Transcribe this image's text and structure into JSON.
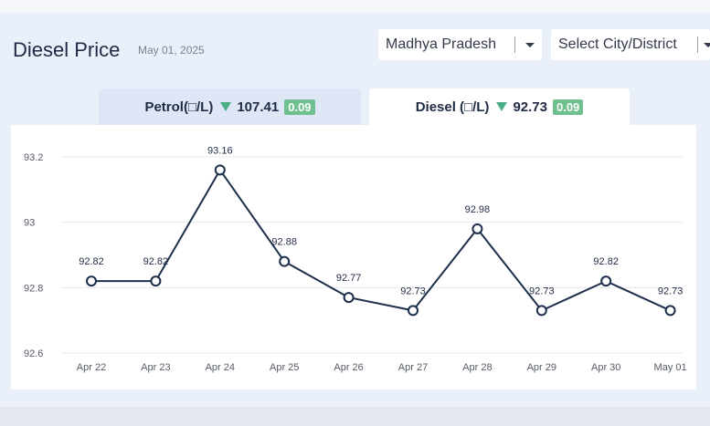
{
  "header": {
    "title": "Diesel Price",
    "date": "May 01, 2025"
  },
  "filters": {
    "state": "Madhya Pradesh",
    "city": "Select City/District"
  },
  "tabs": {
    "petrol": {
      "label": "Petrol(□/L)",
      "price": "107.41",
      "change": "0.09"
    },
    "diesel": {
      "label": "Diesel (□/L)",
      "price": "92.73",
      "change": "0.09"
    }
  },
  "colors": {
    "line": "#1c2e4a",
    "down_arrow": "#4cae84",
    "badge": "#6fbf8f"
  },
  "chart_data": {
    "type": "line",
    "categories": [
      "Apr 22",
      "Apr 23",
      "Apr 24",
      "Apr 25",
      "Apr 26",
      "Apr 27",
      "Apr 28",
      "Apr 29",
      "Apr 30",
      "May 01"
    ],
    "values": [
      92.82,
      92.82,
      93.16,
      92.88,
      92.77,
      92.73,
      92.98,
      92.73,
      92.82,
      92.73
    ],
    "data_labels": [
      "92.82",
      "92.82",
      "93.16",
      "92.88",
      "92.77",
      "92.73",
      "92.98",
      "92.73",
      "92.82",
      "92.73"
    ],
    "y_ticks": [
      "93.2",
      "93",
      "92.8",
      "92.6"
    ],
    "ylim": [
      92.6,
      93.2
    ],
    "grid": true
  }
}
